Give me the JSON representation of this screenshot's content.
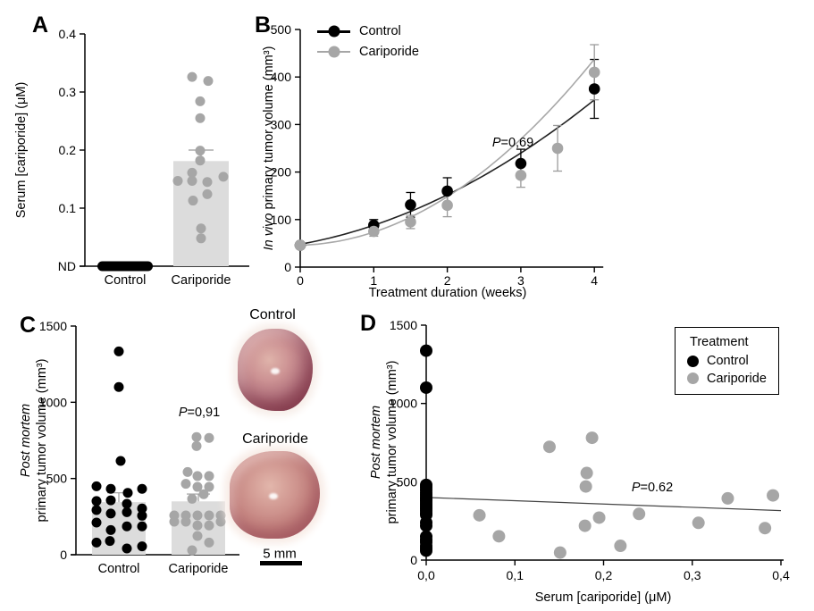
{
  "figure": {
    "background": "#ffffff",
    "colors": {
      "control": "#000000",
      "cariporide": "#a6a6a6",
      "bar_fill": "#dcdcdc",
      "error_gray": "#9b9b9b",
      "axis": "#000000"
    }
  },
  "photos": {
    "control_label": "Control",
    "cariporide_label": "Cariporide",
    "scale_bar": "5 mm"
  },
  "chart_data": [
    {
      "panel_letter": "A",
      "type": "bar",
      "ylabel": "Serum [cariporide] (μM)",
      "ylim": [
        0,
        0.4
      ],
      "yticks": [
        {
          "v": 0.0,
          "label": "ND"
        },
        {
          "v": 0.1,
          "label": "0.1"
        },
        {
          "v": 0.2,
          "label": "0.2"
        },
        {
          "v": 0.3,
          "label": "0.3"
        },
        {
          "v": 0.4,
          "label": "0.4"
        }
      ],
      "categories": [
        "Control",
        "Cariporide"
      ],
      "control_all_nd": true,
      "bar_mean": 0.181,
      "bar_sem_top": 0.2,
      "cariporide_points": [
        {
          "dx": -10,
          "v": 0.326
        },
        {
          "dx": 8,
          "v": 0.319
        },
        {
          "dx": -1,
          "v": 0.284
        },
        {
          "dx": -1,
          "v": 0.255
        },
        {
          "dx": -1,
          "v": 0.199
        },
        {
          "dx": -1,
          "v": 0.182
        },
        {
          "dx": -10,
          "v": 0.161
        },
        {
          "dx": 25,
          "v": 0.154
        },
        {
          "dx": -26,
          "v": 0.147
        },
        {
          "dx": -10,
          "v": 0.147
        },
        {
          "dx": 7,
          "v": 0.145
        },
        {
          "dx": 7,
          "v": 0.124
        },
        {
          "dx": -9,
          "v": 0.113
        },
        {
          "dx": 0,
          "v": 0.065
        },
        {
          "dx": 0,
          "v": 0.048
        }
      ]
    },
    {
      "panel_letter": "B",
      "type": "line",
      "ylabel_italic": "In vivo",
      "ylabel_rest": " primary tumor volume (mm³)",
      "xlabel": "Treatment duration (weeks)",
      "ylim": [
        0,
        500
      ],
      "yticks": [
        0,
        100,
        200,
        300,
        400,
        500
      ],
      "xlim": [
        0,
        4
      ],
      "xticks": [
        0,
        1,
        2,
        3,
        4
      ],
      "p_prefix": "P",
      "p_value": "=0,69",
      "legend": [
        {
          "label": "Control",
          "color": "control"
        },
        {
          "label": "Cariporide",
          "color": "cariporide"
        }
      ],
      "series": [
        {
          "name": "Control",
          "color": "control",
          "x": [
            0,
            1,
            1.5,
            2,
            3,
            4
          ],
          "y": [
            46,
            88,
            131,
            160,
            218,
            375
          ],
          "err": [
            5,
            12,
            26,
            28,
            30,
            62
          ],
          "fit_quadratic": [
            48,
            28,
            12
          ]
        },
        {
          "name": "Cariporide",
          "color": "cariporide",
          "x": [
            0,
            1,
            1.5,
            2,
            3,
            3.5,
            4
          ],
          "y": [
            46,
            75,
            95,
            130,
            193,
            250,
            410
          ],
          "err": [
            5,
            10,
            14,
            24,
            25,
            48,
            58
          ],
          "fit_quadratic": [
            46,
            4.25,
            23.4
          ]
        }
      ]
    },
    {
      "panel_letter": "C",
      "type": "bar",
      "ylabel_line1": "Post mortem",
      "ylabel_line2": "primary tumor volume (mm³)",
      "ylim": [
        0,
        1500
      ],
      "yticks": [
        0,
        500,
        1000,
        1500
      ],
      "categories": [
        "Control",
        "Cariporide"
      ],
      "p_prefix": "P",
      "p_value": "=0,91",
      "bars": [
        {
          "category": "Control",
          "mean": 345,
          "sem_top": 406
        },
        {
          "category": "Cariporide",
          "mean": 350,
          "sem_top": 398
        }
      ],
      "groups": [
        {
          "name": "Control",
          "color": "control",
          "points": [
            [
              0,
              1334
            ],
            [
              0,
              1100
            ],
            [
              2,
              615
            ],
            [
              -25,
              449
            ],
            [
              -9,
              432
            ],
            [
              26,
              432
            ],
            [
              10,
              406
            ],
            [
              -25,
              352
            ],
            [
              -9,
              357
            ],
            [
              9,
              334
            ],
            [
              26,
              303
            ],
            [
              -25,
              293
            ],
            [
              -9,
              270
            ],
            [
              9,
              279
            ],
            [
              26,
              256
            ],
            [
              -25,
              211
            ],
            [
              -9,
              162
            ],
            [
              9,
              186
            ],
            [
              26,
              186
            ],
            [
              -25,
              80
            ],
            [
              -10,
              90
            ],
            [
              9,
              41
            ],
            [
              26,
              55
            ]
          ]
        },
        {
          "name": "Cariporide",
          "color": "cariporide",
          "points": [
            [
              -2,
              772
            ],
            [
              12,
              766
            ],
            [
              -2,
              713
            ],
            [
              -12,
              543
            ],
            [
              -1,
              516
            ],
            [
              12,
              516
            ],
            [
              -14,
              465
            ],
            [
              -1,
              445
            ],
            [
              12,
              445
            ],
            [
              6,
              397
            ],
            [
              -7,
              367
            ],
            [
              -27,
              258
            ],
            [
              -14,
              258
            ],
            [
              -1,
              258
            ],
            [
              12,
              258
            ],
            [
              25,
              258
            ],
            [
              -27,
              217
            ],
            [
              -14,
              217
            ],
            [
              25,
              217
            ],
            [
              -1,
              192
            ],
            [
              12,
              192
            ],
            [
              -1,
              123
            ],
            [
              12,
              80
            ],
            [
              -7,
              29
            ]
          ]
        }
      ]
    },
    {
      "panel_letter": "D",
      "type": "scatter",
      "ylabel_line1": "Post mortem",
      "ylabel_line2": "primary tumor volume (mm³)",
      "xlabel": "Serum [cariporide] (μM)",
      "ylim": [
        0,
        1500
      ],
      "yticks": [
        0,
        500,
        1000,
        1500
      ],
      "xlim": [
        0,
        0.4
      ],
      "xticks": [
        {
          "v": 0.0,
          "label": "0,0"
        },
        {
          "v": 0.1,
          "label": "0,1"
        },
        {
          "v": 0.2,
          "label": "0,2"
        },
        {
          "v": 0.3,
          "label": "0,3"
        },
        {
          "v": 0.4,
          "label": "0,4"
        }
      ],
      "p_prefix": "P",
      "p_value": "=0.62",
      "legend": {
        "title": "Treatment",
        "items": [
          {
            "label": "Control",
            "color": "control"
          },
          {
            "label": "Cariporide",
            "color": "cariporide"
          }
        ]
      },
      "regression": {
        "x1": 0.0,
        "v1": 400,
        "x2": 0.4,
        "v2": 316
      },
      "series": [
        {
          "name": "Control",
          "color": "control",
          "x_value": 0.0,
          "values": [
            1337,
            1101,
            480,
            465,
            448,
            430,
            415,
            400,
            390,
            378,
            365,
            352,
            340,
            328,
            315,
            300,
            289,
            240,
            219,
            150,
            130,
            114,
            91,
            75,
            60
          ]
        },
        {
          "name": "Cariporide",
          "color": "cariporide",
          "points": [
            [
              0.06,
              286
            ],
            [
              0.082,
              152
            ],
            [
              0.139,
              723
            ],
            [
              0.151,
              48
            ],
            [
              0.179,
              219
            ],
            [
              0.18,
              470
            ],
            [
              0.181,
              556
            ],
            [
              0.187,
              781
            ],
            [
              0.195,
              271
            ],
            [
              0.219,
              91
            ],
            [
              0.24,
              295
            ],
            [
              0.307,
              238
            ],
            [
              0.34,
              394
            ],
            [
              0.382,
              204
            ],
            [
              0.391,
              413
            ]
          ]
        }
      ]
    }
  ]
}
